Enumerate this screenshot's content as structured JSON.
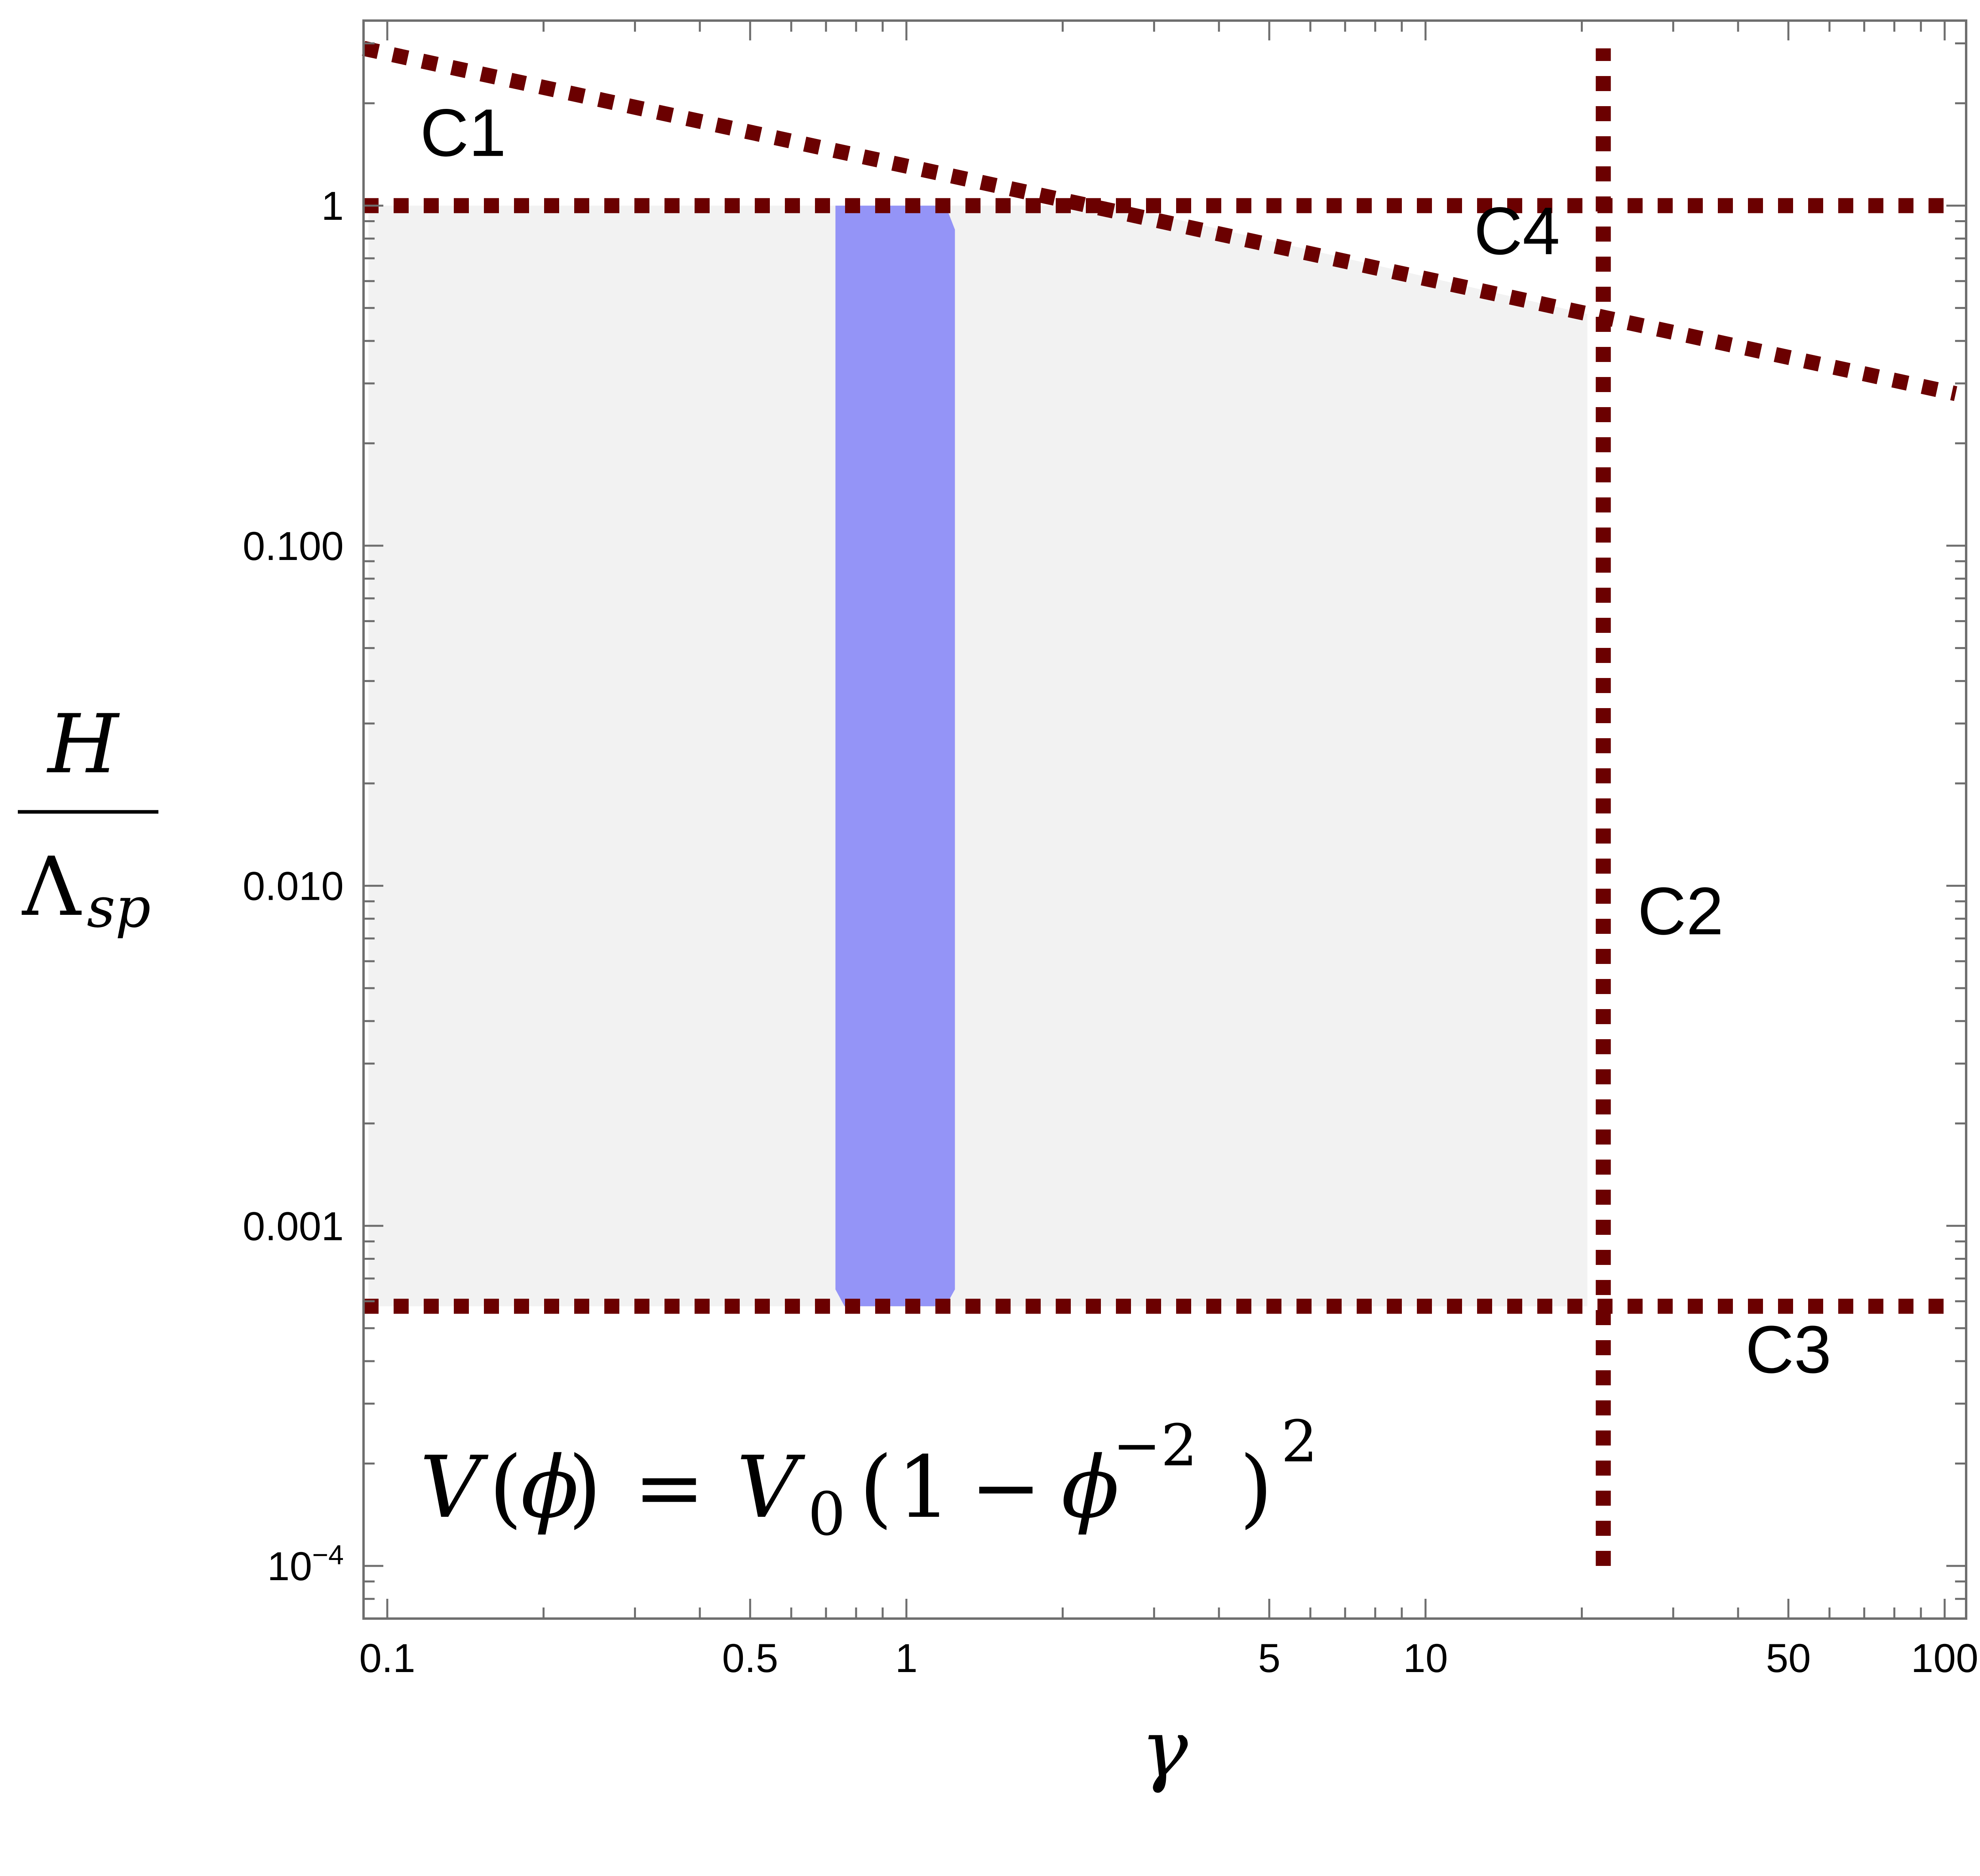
{
  "chart_data": {
    "type": "line",
    "x_scale": "log",
    "y_scale": "log",
    "xlim": [
      0.09,
      110
    ],
    "ylim": [
      7e-05,
      3.5
    ],
    "x_ticks": [
      {
        "value": 0.1,
        "label": "0.1"
      },
      {
        "value": 0.5,
        "label": "0.5"
      },
      {
        "value": 1,
        "label": "1"
      },
      {
        "value": 5,
        "label": "5"
      },
      {
        "value": 10,
        "label": "10"
      },
      {
        "value": 50,
        "label": "50"
      },
      {
        "value": 100,
        "label": "100"
      }
    ],
    "y_ticks": [
      {
        "value": 1,
        "label": "1",
        "sup": ""
      },
      {
        "value": 0.1,
        "label": "0.100",
        "sup": ""
      },
      {
        "value": 0.01,
        "label": "0.010",
        "sup": ""
      },
      {
        "value": 0.001,
        "label": "0.001",
        "sup": ""
      },
      {
        "value": 0.0001,
        "label": "10",
        "sup": "−4"
      }
    ],
    "xlabel": "γ",
    "ylabel": {
      "numerator": "H",
      "denominator": "Λ",
      "subscript": "sp"
    },
    "grid": false,
    "frame_ticks": "all four sides",
    "series": [
      {
        "name": "C1",
        "style": "dotted",
        "color": "#6b0000",
        "x": [
          0.09,
          105
        ],
        "y": [
          1,
          1
        ]
      },
      {
        "name": "C2",
        "style": "dotted",
        "color": "#6b0000",
        "x": [
          22,
          22
        ],
        "y": [
          0.0001,
          2.9
        ]
      },
      {
        "name": "C3",
        "style": "dotted",
        "color": "#6b0000",
        "x": [
          0.09,
          105
        ],
        "y": [
          0.00058,
          0.00058
        ]
      },
      {
        "name": "C4",
        "style": "dotted",
        "color": "#6b0000",
        "x": [
          0.09,
          105
        ],
        "y": [
          2.9,
          0.28
        ]
      }
    ],
    "series_labels": [
      {
        "text": "C1",
        "x": 0.14,
        "y": 1.4
      },
      {
        "text": "C4",
        "x": 15,
        "y": 0.72
      },
      {
        "text": "C2",
        "x": 31,
        "y": 0.0072
      },
      {
        "text": "C3",
        "x": 50,
        "y": 0.00037
      }
    ],
    "regions": [
      {
        "name": "allowed",
        "color": "#f2f2f2",
        "polygon": [
          [
            0.092,
            0.00058
          ],
          [
            0.092,
            1
          ],
          [
            2.55,
            1
          ],
          [
            20.5,
            0.48
          ],
          [
            20.5,
            0.00058
          ]
        ]
      },
      {
        "name": "band",
        "color": "#9494f7",
        "polygon": [
          [
            0.73,
            0.00065
          ],
          [
            0.73,
            1
          ],
          [
            1.19,
            1
          ],
          [
            1.24,
            0.85
          ],
          [
            1.24,
            0.00065
          ],
          [
            1.19,
            0.00058
          ],
          [
            0.76,
            0.00058
          ]
        ]
      }
    ],
    "annotation": {
      "V": "V",
      "phi": "ϕ",
      "sub0": "0",
      "one": "1",
      "exp_phi": "−2",
      "exp_outer": "2"
    }
  }
}
